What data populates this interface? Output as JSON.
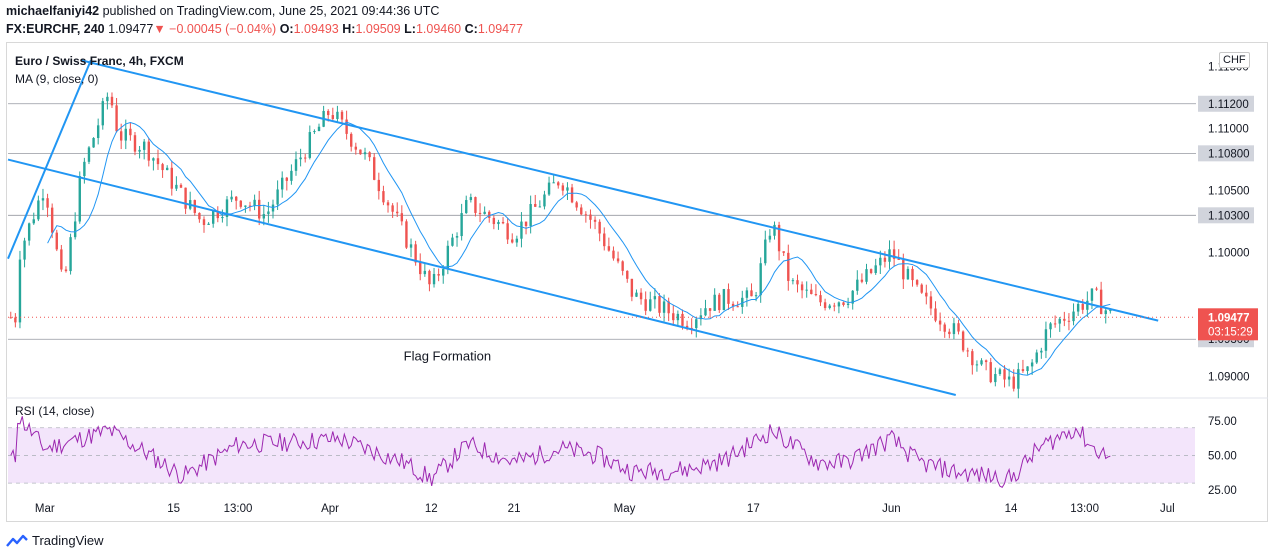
{
  "header": {
    "author": "michaelfaniyi42",
    "published_text": "published on TradingView.com, June 25, 2021 09:44:36 UTC",
    "symbol_line": "FX:EURCHF, 240",
    "last": "1.09477",
    "change": "−0.00045 (−0.04%)",
    "o_label": "O:",
    "o": "1.09493",
    "h_label": "H:",
    "h": "1.09509",
    "l_label": "L:",
    "l": "1.09460",
    "c_label": "C:",
    "c": "1.09477"
  },
  "legend": {
    "title": "Euro / Swiss Franc, 4h, FXCM",
    "ma": "MA (9, close, 0)",
    "rsi": "RSI (14, close)"
  },
  "currency_badge": "CHF",
  "footer": {
    "brand": "TradingView"
  },
  "chart_data": [
    {
      "type": "candlestick",
      "title": "Euro / Swiss Franc, 4h, FXCM",
      "x_tick_labels": [
        "Mar",
        "15",
        "13:00",
        "Apr",
        "12",
        "21",
        "May",
        "17",
        "Jun",
        "14",
        "13:00",
        "Jul"
      ],
      "y_tick_labels": [
        "1.11500",
        "1.11200",
        "1.11000",
        "1.10800",
        "1.10500",
        "1.10300",
        "1.10000",
        "1.09477",
        "1.09300",
        "1.09000"
      ],
      "ylim": [
        1.0885,
        1.1165
      ],
      "highlighted_levels": [
        {
          "label": "1.11200",
          "value": 1.112
        },
        {
          "label": "1.10800",
          "value": 1.108
        },
        {
          "label": "1.10300",
          "value": 1.103
        },
        {
          "label": "1.09300",
          "value": 1.093
        }
      ],
      "current_price": {
        "label": "1.09477",
        "value": 1.09477,
        "countdown": "03:15:29",
        "color": "#ef5350"
      },
      "annotation": "Flag Formation",
      "channel_color": "#2196f3",
      "up_color": "#26a69a",
      "down_color": "#ef5350",
      "ma_color": "#2196f3",
      "price_path_approx": [
        [
          "Feb 26",
          1.0995
        ],
        [
          "Mar 1",
          1.1055
        ],
        [
          "Mar 3",
          1.097
        ],
        [
          "Mar 5",
          1.1065
        ],
        [
          "Mar 8",
          1.113
        ],
        [
          "Mar 9",
          1.1095
        ],
        [
          "Mar 12",
          1.1085
        ],
        [
          "Mar 15",
          1.1055
        ],
        [
          "Mar 18",
          1.1025
        ],
        [
          "Mar 22",
          1.1045
        ],
        [
          "Mar 25",
          1.103
        ],
        [
          "Mar 29",
          1.108
        ],
        [
          "Apr 1",
          1.1115
        ],
        [
          "Apr 5",
          1.1075
        ],
        [
          "Apr 9",
          1.1015
        ],
        [
          "Apr 12",
          1.097
        ],
        [
          "Apr 16",
          1.104
        ],
        [
          "Apr 21",
          1.1015
        ],
        [
          "Apr 26",
          1.106
        ],
        [
          "Apr 30",
          1.102
        ],
        [
          "May 4",
          1.0965
        ],
        [
          "May 7",
          1.0955
        ],
        [
          "May 10",
          1.0945
        ],
        [
          "May 12",
          1.0958
        ],
        [
          "May 14",
          1.0963
        ],
        [
          "May 17",
          1.0962
        ],
        [
          "May 19",
          1.1025
        ],
        [
          "May 21",
          1.0975
        ],
        [
          "May 24",
          1.096
        ],
        [
          "May 27",
          1.0963
        ],
        [
          "Jun 1",
          1.1
        ],
        [
          "Jun 4",
          1.0965
        ],
        [
          "Jun 8",
          1.0935
        ],
        [
          "Jun 11",
          1.0905
        ],
        [
          "Jun 14",
          1.0895
        ],
        [
          "Jun 16",
          1.0905
        ],
        [
          "Jun 18",
          1.0938
        ],
        [
          "Jun 21",
          1.0955
        ],
        [
          "Jun 23",
          1.0965
        ],
        [
          "Jun 25",
          1.09477
        ]
      ],
      "trendlines": [
        {
          "name": "channel upper",
          "from": [
            "Mar 5",
            1.1155
          ],
          "to": [
            "Jun 30",
            1.0945
          ]
        },
        {
          "name": "channel lower",
          "from": [
            "Feb 25",
            1.1075
          ],
          "to": [
            "Jun 8",
            1.0885
          ]
        },
        {
          "name": "flagpole",
          "from": [
            "Feb 25",
            1.0995
          ],
          "to": [
            "Mar 6",
            1.1155
          ]
        }
      ]
    },
    {
      "type": "line",
      "title": "RSI (14, close)",
      "y_tick_labels": [
        "75.00",
        "50.00",
        "25.00"
      ],
      "ylim": [
        20,
        90
      ],
      "band": [
        30,
        70
      ],
      "band_color": "#f3e5fb",
      "line_color": "#9c27b0",
      "rsi_path_approx": [
        [
          "Feb 26",
          79
        ],
        [
          "Mar 1",
          55
        ],
        [
          "Mar 8",
          68
        ],
        [
          "Mar 12",
          52
        ],
        [
          "Mar 16",
          35
        ],
        [
          "Mar 22",
          58
        ],
        [
          "Mar 29",
          60
        ],
        [
          "Apr 2",
          62
        ],
        [
          "Apr 9",
          45
        ],
        [
          "Apr 12",
          33
        ],
        [
          "Apr 16",
          58
        ],
        [
          "Apr 21",
          45
        ],
        [
          "Apr 26",
          55
        ],
        [
          "Apr 30",
          50
        ],
        [
          "May 4",
          38
        ],
        [
          "May 10",
          40
        ],
        [
          "May 14",
          47
        ],
        [
          "May 19",
          68
        ],
        [
          "May 24",
          45
        ],
        [
          "May 27",
          45
        ],
        [
          "Jun 1",
          62
        ],
        [
          "Jun 4",
          45
        ],
        [
          "Jun 8",
          38
        ],
        [
          "Jun 14",
          33
        ],
        [
          "Jun 17",
          55
        ],
        [
          "Jun 21",
          70
        ],
        [
          "Jun 23",
          55
        ],
        [
          "Jun 25",
          48
        ]
      ]
    }
  ]
}
